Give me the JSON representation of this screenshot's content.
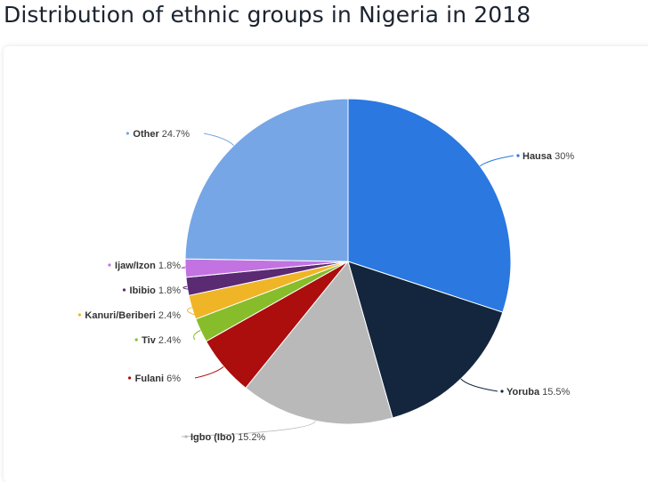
{
  "title": "Distribution of ethnic groups in Nigeria in 2018",
  "chart_data": {
    "type": "pie",
    "title": "Distribution of ethnic groups in Nigeria in 2018",
    "slices": [
      {
        "label": "Hausa",
        "value": 30,
        "value_label": "30%",
        "color": "#2a78e0"
      },
      {
        "label": "Yoruba",
        "value": 15.5,
        "value_label": "15.5%",
        "color": "#14263d"
      },
      {
        "label": "Igbo (Ibo)",
        "value": 15.2,
        "value_label": "15.2%",
        "color": "#b9b9b9"
      },
      {
        "label": "Fulani",
        "value": 6,
        "value_label": "6%",
        "color": "#ac0d0d"
      },
      {
        "label": "Tiv",
        "value": 2.4,
        "value_label": "2.4%",
        "color": "#87bd2b"
      },
      {
        "label": "Kanuri/Beriberi",
        "value": 2.4,
        "value_label": "2.4%",
        "color": "#efb527"
      },
      {
        "label": "Ibibio",
        "value": 1.8,
        "value_label": "1.8%",
        "color": "#5a2a73"
      },
      {
        "label": "Ijaw/Izon",
        "value": 1.8,
        "value_label": "1.8%",
        "color": "#c273e1"
      },
      {
        "label": "Other",
        "value": 24.7,
        "value_label": "24.7%",
        "color": "#76a6e6"
      }
    ]
  }
}
